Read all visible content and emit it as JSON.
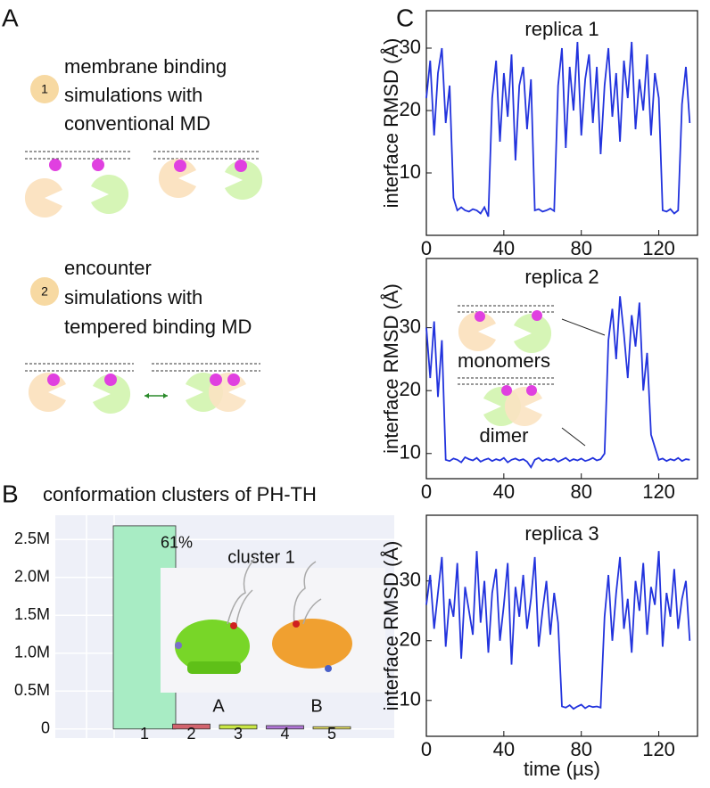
{
  "panel_labels": [
    "A",
    "B",
    "C"
  ],
  "diagram": {
    "steps": [
      {
        "number": "1",
        "lines": [
          "membrane binding",
          "simulations with",
          "conventional MD"
        ]
      },
      {
        "number": "2",
        "lines": [
          "encounter",
          "simulations with",
          "tempered binding MD"
        ]
      }
    ]
  },
  "chart_data": [
    {
      "type": "bar",
      "title": "conformation clusters of PH-TH",
      "categories": [
        "1",
        "2",
        "3",
        "4",
        "5"
      ],
      "values": [
        2680000,
        65000,
        55000,
        45000,
        30000
      ],
      "colors": [
        "#a8ecc4",
        "#d2646e",
        "#c9e645",
        "#b075d6",
        "#ece766"
      ],
      "annotation": "61%",
      "inset": {
        "title": "cluster 1",
        "labels": [
          "A",
          "B"
        ]
      },
      "ylim": [
        -120000,
        2820000
      ],
      "yticks": [
        0,
        {
          "value": 500000,
          "label": "0.5M"
        },
        {
          "value": 1000000,
          "label": "1.0M"
        },
        {
          "value": 1500000,
          "label": "1.5M"
        },
        {
          "value": 2000000,
          "label": "2.0M"
        },
        {
          "value": 2500000,
          "label": "2.5M"
        }
      ],
      "grid": true
    },
    {
      "type": "line",
      "title": "replica 1",
      "ylabel": "interface RMSD (Å)",
      "color": "#2233dd",
      "x": [
        0,
        2,
        4,
        6,
        8,
        10,
        12,
        14,
        16,
        18,
        20,
        22,
        24,
        26,
        28,
        30,
        32,
        34,
        36,
        38,
        40,
        42,
        44,
        46,
        48,
        50,
        52,
        54,
        56,
        58,
        60,
        62,
        64,
        66,
        68,
        70,
        72,
        74,
        76,
        78,
        80,
        82,
        84,
        86,
        88,
        90,
        92,
        94,
        96,
        98,
        100,
        102,
        104,
        106,
        108,
        110,
        112,
        114,
        116,
        118,
        120,
        122,
        124,
        126,
        128,
        130,
        132,
        134,
        136
      ],
      "values": [
        22,
        28,
        16,
        26,
        30,
        18,
        24,
        6,
        4,
        4.5,
        4,
        3.8,
        4.2,
        4,
        3.5,
        4.5,
        3,
        22,
        28,
        15,
        26,
        19,
        29,
        12,
        24,
        27,
        17,
        25,
        4,
        4.2,
        3.8,
        4,
        4.3,
        3.9,
        24,
        30,
        14,
        27,
        20,
        31,
        16,
        25,
        29,
        18,
        27,
        13,
        24,
        30,
        19,
        26,
        15,
        28,
        22,
        31,
        17,
        25,
        20,
        29,
        16,
        26,
        22,
        4,
        3.8,
        4.2,
        3.5,
        4,
        21,
        27,
        18
      ],
      "xlim": [
        0,
        140
      ],
      "ylim": [
        0,
        36
      ],
      "xticks": [
        0,
        40,
        80,
        120
      ],
      "yticks": [
        10,
        20,
        30
      ]
    },
    {
      "type": "line",
      "title": "replica 2",
      "ylabel": "interface RMSD (Å)",
      "color": "#2233dd",
      "annotations": [
        "monomers",
        "dimer"
      ],
      "x": [
        0,
        2,
        4,
        6,
        8,
        10,
        12,
        14,
        16,
        18,
        20,
        22,
        24,
        26,
        28,
        30,
        32,
        34,
        36,
        38,
        40,
        42,
        44,
        46,
        48,
        50,
        52,
        54,
        56,
        58,
        60,
        62,
        64,
        66,
        68,
        70,
        72,
        74,
        76,
        78,
        80,
        82,
        84,
        86,
        88,
        90,
        92,
        94,
        96,
        98,
        100,
        102,
        104,
        106,
        108,
        110,
        112,
        114,
        116,
        118,
        120,
        122,
        124,
        126,
        128,
        130,
        132,
        134,
        136
      ],
      "values": [
        30,
        22,
        31,
        19,
        28,
        9,
        8.8,
        9.2,
        9,
        8.6,
        9.4,
        9.1,
        8.9,
        9.3,
        8.7,
        9,
        9.2,
        8.8,
        9.1,
        8.9,
        9.3,
        8.6,
        9,
        9.2,
        8.9,
        9.1,
        8.7,
        7.8,
        9,
        9.3,
        8.8,
        9.1,
        8.9,
        9.2,
        8.7,
        9,
        9.3,
        8.8,
        9.1,
        8.9,
        9.2,
        8.8,
        9,
        9.3,
        8.9,
        9.1,
        10,
        28,
        33,
        25,
        35,
        29,
        22,
        32,
        27,
        34,
        20,
        26,
        13,
        11,
        9,
        9.2,
        8.8,
        9.1,
        8.9,
        9.3,
        8.8,
        9.1,
        9
      ],
      "xlim": [
        0,
        140
      ],
      "ylim": [
        6,
        41
      ],
      "xticks": [
        0,
        40,
        80,
        120
      ],
      "yticks": [
        10,
        20,
        30
      ]
    },
    {
      "type": "line",
      "title": "replica 3",
      "ylabel": "interface RMSD (Å)",
      "xlabel": "time (µs)",
      "color": "#2233dd",
      "x": [
        0,
        2,
        4,
        6,
        8,
        10,
        12,
        14,
        16,
        18,
        20,
        22,
        24,
        26,
        28,
        30,
        32,
        34,
        36,
        38,
        40,
        42,
        44,
        46,
        48,
        50,
        52,
        54,
        56,
        58,
        60,
        62,
        64,
        66,
        68,
        70,
        72,
        74,
        76,
        78,
        80,
        82,
        84,
        86,
        88,
        90,
        92,
        94,
        96,
        98,
        100,
        102,
        104,
        106,
        108,
        110,
        112,
        114,
        116,
        118,
        120,
        122,
        124,
        126,
        128,
        130,
        132,
        134,
        136
      ],
      "values": [
        26,
        31,
        22,
        28,
        34,
        19,
        27,
        24,
        33,
        17,
        29,
        25,
        21,
        35,
        23,
        30,
        18,
        28,
        32,
        20,
        26,
        33,
        16,
        29,
        24,
        31,
        22,
        27,
        34,
        19,
        25,
        30,
        21,
        28,
        23,
        9,
        8.8,
        9.2,
        8.6,
        9,
        9.3,
        8.7,
        9.1,
        8.9,
        9,
        8.8,
        24,
        31,
        20,
        28,
        34,
        22,
        27,
        18,
        30,
        25,
        33,
        21,
        29,
        26,
        35,
        19,
        28,
        24,
        32,
        22,
        27,
        30,
        20
      ],
      "xlim": [
        0,
        140
      ],
      "ylim": [
        4,
        41
      ],
      "xticks": [
        0,
        40,
        80,
        120
      ],
      "yticks": [
        10,
        20,
        30
      ]
    }
  ]
}
